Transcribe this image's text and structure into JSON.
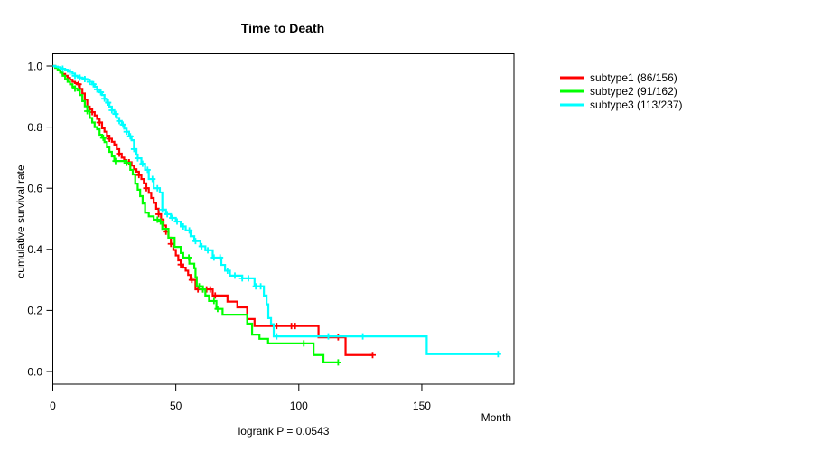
{
  "title": "Time to Death",
  "footer": {
    "logrank": "logrank P = 0.0543"
  },
  "axes": {
    "x": {
      "label": "Month",
      "ticks": [
        0,
        50,
        100,
        150
      ],
      "tick_labels": [
        "0",
        "50",
        "100",
        "150"
      ]
    },
    "y": {
      "label": "cumulative survival rate",
      "ticks": [
        {
          "v": 1.0,
          "label": "1.0"
        },
        {
          "v": 0.8,
          "label": "0.8"
        },
        {
          "v": 0.6,
          "label": "0.6"
        },
        {
          "v": 0.4,
          "label": "0.4"
        },
        {
          "v": 0.2,
          "label": "0.2"
        },
        {
          "v": 0.0,
          "label": "0.0"
        }
      ]
    }
  },
  "colors": {
    "subtype1": "#ff0000",
    "subtype2": "#00ff00",
    "subtype3": "#00ffff",
    "axis": "#000000"
  },
  "chart_data": {
    "type": "line",
    "variant": "kaplan-meier-step",
    "title": "Time to Death",
    "xlabel": "Month",
    "ylabel": "cumulative survival rate",
    "xlim": [
      0,
      187
    ],
    "ylim": [
      0,
      1
    ],
    "grid": false,
    "legend_position": "right-outside",
    "annotation": "logrank P = 0.0543",
    "series": [
      {
        "name": "subtype1",
        "label": "subtype1 (86/156)",
        "color": "#ff0000",
        "points": [
          [
            0,
            1.0
          ],
          [
            1,
            0.994
          ],
          [
            2,
            0.987
          ],
          [
            3,
            0.981
          ],
          [
            4,
            0.974
          ],
          [
            5,
            0.968
          ],
          [
            6,
            0.961
          ],
          [
            7,
            0.955
          ],
          [
            8,
            0.948
          ],
          [
            9,
            0.944
          ],
          [
            10,
            0.94
          ],
          [
            11,
            0.925
          ],
          [
            12,
            0.91
          ],
          [
            13,
            0.89
          ],
          [
            14,
            0.867
          ],
          [
            15,
            0.858
          ],
          [
            16,
            0.849
          ],
          [
            17,
            0.838
          ],
          [
            18,
            0.827
          ],
          [
            19,
            0.815
          ],
          [
            20,
            0.796
          ],
          [
            21,
            0.785
          ],
          [
            22,
            0.772
          ],
          [
            23,
            0.762
          ],
          [
            24,
            0.752
          ],
          [
            25,
            0.743
          ],
          [
            26,
            0.728
          ],
          [
            27,
            0.713
          ],
          [
            28,
            0.7
          ],
          [
            29,
            0.692
          ],
          [
            30,
            0.685
          ],
          [
            32,
            0.674
          ],
          [
            33,
            0.662
          ],
          [
            34,
            0.654
          ],
          [
            35,
            0.643
          ],
          [
            36,
            0.63
          ],
          [
            37,
            0.616
          ],
          [
            38,
            0.6
          ],
          [
            39,
            0.585
          ],
          [
            40,
            0.568
          ],
          [
            41,
            0.552
          ],
          [
            42,
            0.533
          ],
          [
            43,
            0.515
          ],
          [
            44,
            0.498
          ],
          [
            45,
            0.478
          ],
          [
            46,
            0.458
          ],
          [
            47,
            0.438
          ],
          [
            48,
            0.418
          ],
          [
            49,
            0.398
          ],
          [
            50,
            0.38
          ],
          [
            51,
            0.364
          ],
          [
            52,
            0.35
          ],
          [
            53,
            0.34
          ],
          [
            54,
            0.33
          ],
          [
            55,
            0.316
          ],
          [
            56,
            0.3
          ],
          [
            58,
            0.269
          ],
          [
            65,
            0.249
          ],
          [
            71,
            0.229
          ],
          [
            75,
            0.21
          ],
          [
            79,
            0.172
          ],
          [
            82,
            0.149
          ],
          [
            108,
            0.112
          ],
          [
            119,
            0.054
          ]
        ],
        "end_month": 130,
        "censor_months": [
          10.5,
          16,
          19,
          23,
          27,
          31,
          35,
          38,
          43,
          46,
          48,
          52,
          56.5,
          59,
          61,
          62.5,
          64,
          66,
          91,
          97,
          98.5,
          116,
          130
        ]
      },
      {
        "name": "subtype2",
        "label": "subtype2 (91/162)",
        "color": "#00ff00",
        "points": [
          [
            0,
            1.0
          ],
          [
            1,
            0.994
          ],
          [
            2,
            0.988
          ],
          [
            3,
            0.978
          ],
          [
            4,
            0.968
          ],
          [
            5,
            0.957
          ],
          [
            6,
            0.948
          ],
          [
            7,
            0.94
          ],
          [
            8,
            0.932
          ],
          [
            9,
            0.926
          ],
          [
            10,
            0.92
          ],
          [
            11,
            0.905
          ],
          [
            12,
            0.885
          ],
          [
            13,
            0.868
          ],
          [
            14,
            0.852
          ],
          [
            15,
            0.83
          ],
          [
            16,
            0.815
          ],
          [
            17,
            0.8
          ],
          [
            18,
            0.793
          ],
          [
            19,
            0.775
          ],
          [
            20,
            0.765
          ],
          [
            21,
            0.751
          ],
          [
            22,
            0.734
          ],
          [
            23,
            0.719
          ],
          [
            24,
            0.704
          ],
          [
            25,
            0.689
          ],
          [
            30,
            0.683
          ],
          [
            31.5,
            0.66
          ],
          [
            32.5,
            0.645
          ],
          [
            33.5,
            0.615
          ],
          [
            34.5,
            0.595
          ],
          [
            35.5,
            0.574
          ],
          [
            36.5,
            0.55
          ],
          [
            37.5,
            0.52
          ],
          [
            39,
            0.508
          ],
          [
            41,
            0.497
          ],
          [
            43,
            0.491
          ],
          [
            44.5,
            0.467
          ],
          [
            47,
            0.438
          ],
          [
            49.5,
            0.408
          ],
          [
            52,
            0.388
          ],
          [
            53,
            0.373
          ],
          [
            55.5,
            0.353
          ],
          [
            57.5,
            0.338
          ],
          [
            58,
            0.309
          ],
          [
            58.5,
            0.279
          ],
          [
            61,
            0.269
          ],
          [
            62,
            0.249
          ],
          [
            63.5,
            0.231
          ],
          [
            66.5,
            0.205
          ],
          [
            69,
            0.186
          ],
          [
            79,
            0.157
          ],
          [
            81,
            0.121
          ],
          [
            84,
            0.107
          ],
          [
            87.5,
            0.092
          ],
          [
            106,
            0.054
          ],
          [
            110,
            0.03
          ]
        ],
        "end_month": 116,
        "censor_months": [
          9,
          14,
          20.5,
          25.5,
          30,
          42.5,
          43.8,
          55.3,
          59.5,
          61,
          65.5,
          67,
          102,
          116
        ]
      },
      {
        "name": "subtype3",
        "label": "subtype3 (113/237)",
        "color": "#00ffff",
        "points": [
          [
            0,
            1.0
          ],
          [
            1,
            0.998
          ],
          [
            2,
            0.996
          ],
          [
            3,
            0.993
          ],
          [
            4,
            0.991
          ],
          [
            5,
            0.988
          ],
          [
            6,
            0.985
          ],
          [
            7,
            0.981
          ],
          [
            8,
            0.975
          ],
          [
            9,
            0.968
          ],
          [
            10,
            0.964
          ],
          [
            11,
            0.962
          ],
          [
            12,
            0.96
          ],
          [
            13,
            0.957
          ],
          [
            14,
            0.955
          ],
          [
            15,
            0.948
          ],
          [
            16,
            0.94
          ],
          [
            17,
            0.932
          ],
          [
            18,
            0.923
          ],
          [
            19,
            0.914
          ],
          [
            20,
            0.905
          ],
          [
            21,
            0.893
          ],
          [
            22,
            0.88
          ],
          [
            23,
            0.867
          ],
          [
            24,
            0.855
          ],
          [
            25,
            0.843
          ],
          [
            26,
            0.83
          ],
          [
            27,
            0.82
          ],
          [
            28,
            0.808
          ],
          [
            29,
            0.795
          ],
          [
            30,
            0.785
          ],
          [
            31,
            0.77
          ],
          [
            32,
            0.757
          ],
          [
            33,
            0.728
          ],
          [
            34,
            0.71
          ],
          [
            34.5,
            0.698
          ],
          [
            36,
            0.68
          ],
          [
            37.5,
            0.66
          ],
          [
            39,
            0.63
          ],
          [
            41,
            0.6
          ],
          [
            43.5,
            0.586
          ],
          [
            44.5,
            0.53
          ],
          [
            46,
            0.515
          ],
          [
            48,
            0.503
          ],
          [
            50,
            0.491
          ],
          [
            52,
            0.475
          ],
          [
            54,
            0.462
          ],
          [
            56,
            0.443
          ],
          [
            57.5,
            0.427
          ],
          [
            60,
            0.41
          ],
          [
            62,
            0.397
          ],
          [
            65,
            0.373
          ],
          [
            68.5,
            0.349
          ],
          [
            70,
            0.33
          ],
          [
            72,
            0.314
          ],
          [
            77,
            0.305
          ],
          [
            82,
            0.279
          ],
          [
            85.8,
            0.249
          ],
          [
            86.9,
            0.22
          ],
          [
            87.6,
            0.175
          ],
          [
            88.7,
            0.155
          ],
          [
            89.8,
            0.115
          ],
          [
            152,
            0.057
          ]
        ],
        "end_month": 181,
        "censor_months": [
          4,
          7,
          9,
          11,
          13,
          15,
          16.5,
          18,
          19.5,
          21,
          22.5,
          24,
          25.5,
          27,
          28.5,
          30,
          31.5,
          33,
          34.5,
          36.5,
          38.5,
          40.5,
          42.5,
          44.5,
          46.5,
          48.5,
          50.5,
          53,
          55.5,
          58,
          60.5,
          63,
          65.5,
          68,
          71,
          74,
          77,
          79.5,
          82.5,
          84.5,
          91,
          112,
          126,
          181
        ]
      }
    ]
  }
}
